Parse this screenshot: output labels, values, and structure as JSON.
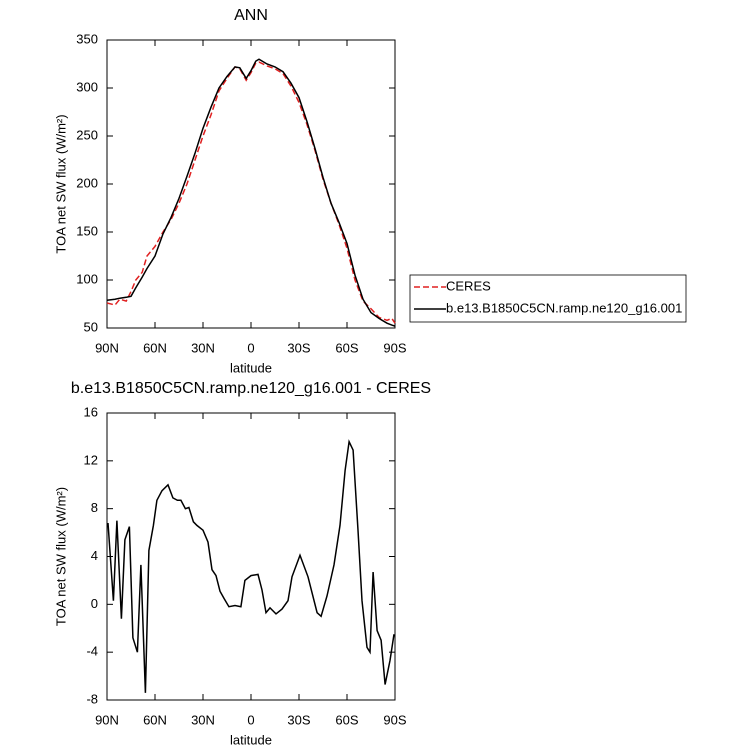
{
  "chart_data": [
    {
      "type": "line",
      "title": "ANN",
      "xlabel": "latitude",
      "ylabel": "TOA net SW flux (W/m²)",
      "x": [
        90,
        85,
        82,
        78,
        75,
        72,
        68,
        65,
        60,
        55,
        50,
        45,
        40,
        35,
        30,
        25,
        20,
        15,
        10,
        7,
        3,
        0,
        -3,
        -5,
        -10,
        -15,
        -20,
        -25,
        -30,
        -35,
        -40,
        -45,
        -50,
        -55,
        -60,
        -65,
        -70,
        -75,
        -80,
        -85,
        -88,
        -90
      ],
      "series": [
        {
          "name": "CERES",
          "color": "#e02020",
          "dashed": true,
          "values": [
            76,
            74,
            80,
            78,
            88,
            100,
            108,
            125,
            135,
            150,
            163,
            180,
            200,
            225,
            250,
            272,
            297,
            310,
            322,
            320,
            308,
            316,
            326,
            327,
            323,
            320,
            315,
            302,
            285,
            262,
            235,
            205,
            180,
            158,
            133,
            100,
            78,
            70,
            61,
            58,
            60,
            55
          ]
        },
        {
          "name": "b.e13.B1850C5CN.ramp.ne120_g16.001",
          "color": "#000000",
          "dashed": false,
          "values": [
            79,
            80,
            81,
            82,
            83,
            92,
            103,
            112,
            125,
            148,
            165,
            185,
            208,
            232,
            258,
            280,
            300,
            312,
            322,
            321,
            310,
            318,
            328,
            330,
            325,
            322,
            317,
            305,
            290,
            265,
            237,
            207,
            180,
            160,
            138,
            105,
            80,
            66,
            60,
            55,
            53,
            52
          ]
        }
      ],
      "xlim": [
        90,
        -90
      ],
      "xticks": [
        {
          "value": 90,
          "label": "90N"
        },
        {
          "value": 60,
          "label": "60N"
        },
        {
          "value": 30,
          "label": "30N"
        },
        0,
        {
          "value": -30,
          "label": "30S"
        },
        {
          "value": -60,
          "label": "60S"
        },
        {
          "value": -90,
          "label": "90S"
        }
      ],
      "ylim": [
        50,
        350
      ],
      "yticks": [
        50,
        100,
        150,
        200,
        250,
        300,
        350
      ],
      "legend": "right"
    },
    {
      "type": "line",
      "title": "b.e13.B1850C5CN.ramp.ne120_g16.001 - CERES",
      "xlabel": "latitude",
      "ylabel": "TOA net SW flux (W/m²)",
      "x": [
        89.4,
        86,
        83.8,
        81,
        78.8,
        76,
        73.8,
        71,
        68.8,
        66,
        63.8,
        61,
        58.8,
        55.6,
        51.9,
        48.8,
        46,
        43.8,
        41,
        38.8,
        36,
        33.8,
        30,
        26.9,
        24.4,
        21.9,
        19.4,
        16.9,
        13.8,
        10,
        6.3,
        3.8,
        0,
        -4.4,
        -6.9,
        -9.4,
        -11.9,
        -15.6,
        -19.4,
        -23.1,
        -25.6,
        -30.6,
        -35.6,
        -41.3,
        -43.8,
        -47.5,
        -51.9,
        -55.6,
        -58.8,
        -61.3,
        -63.8,
        -66.9,
        -69.4,
        -72.5,
        -74.4,
        -76.3,
        -78.8,
        -81.3,
        -83.8,
        -86.9,
        -89.4
      ],
      "series": [
        {
          "name": null,
          "color": "#000000",
          "dashed": false,
          "values": [
            6.8,
            0.3,
            7,
            -1.2,
            5.4,
            6.5,
            -2.8,
            -4,
            3.3,
            -7.4,
            4.5,
            6.6,
            8.7,
            9.5,
            10,
            8.9,
            8.7,
            8.7,
            8,
            8.1,
            6.9,
            6.6,
            6.2,
            5.2,
            2.9,
            2.4,
            1.1,
            0.5,
            -0.2,
            -0.1,
            -0.2,
            2,
            2.4,
            2.5,
            1.2,
            -0.7,
            -0.3,
            -0.8,
            -0.4,
            0.3,
            2.3,
            4.1,
            2.3,
            -0.7,
            -1,
            0.7,
            3.3,
            6.6,
            11.2,
            13.6,
            12.9,
            6.2,
            0.3,
            -3.6,
            -4,
            2.7,
            -2.2,
            -3,
            -6.7,
            -4.7,
            -2.5
          ]
        }
      ],
      "xlim": [
        90,
        -90
      ],
      "xticks": [
        {
          "value": 90,
          "label": "90N"
        },
        {
          "value": 60,
          "label": "60N"
        },
        {
          "value": 30,
          "label": "30N"
        },
        0,
        {
          "value": -30,
          "label": "30S"
        },
        {
          "value": -60,
          "label": "60S"
        },
        {
          "value": -90,
          "label": "90S"
        }
      ],
      "ylim": [
        -8,
        16
      ],
      "yticks": [
        -8,
        -4,
        0,
        4,
        8,
        12,
        16
      ]
    }
  ]
}
